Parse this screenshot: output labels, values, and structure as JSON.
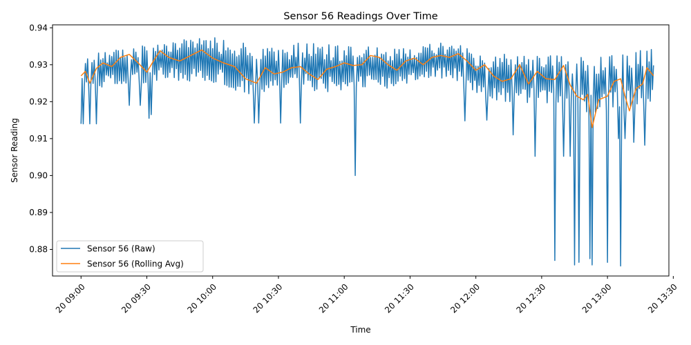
{
  "chart_data": {
    "type": "line",
    "title": "Sensor 56 Readings Over Time",
    "xlabel": "Time",
    "ylabel": "Sensor Reading",
    "xlim": [
      "2000-01-20 08:47",
      "2000-01-20 13:28"
    ],
    "ylim": [
      0.8728,
      0.9408
    ],
    "x_ticks": [
      "20 09:00",
      "20 09:30",
      "20 10:00",
      "20 10:30",
      "20 11:00",
      "20 11:30",
      "20 12:00",
      "20 12:30",
      "20 13:00",
      "20 13:30"
    ],
    "y_ticks": [
      "0.88",
      "0.89",
      "0.90",
      "0.91",
      "0.92",
      "0.93",
      "0.94"
    ],
    "y_tick_values": [
      0.88,
      0.89,
      0.9,
      0.91,
      0.92,
      0.93,
      0.94
    ],
    "grid": false,
    "legend_position": "lower-left",
    "x_start": "2000-01-20 09:00",
    "x_end": "2000-01-20 13:21",
    "sample_interval_minutes": 0.5,
    "series": [
      {
        "name": "Sensor 56 (Raw)",
        "color": "#1f77b4",
        "band": [
          {
            "time": "09:00",
            "low": 0.9238,
            "high": 0.9325
          },
          {
            "time": "09:10",
            "low": 0.9238,
            "high": 0.934
          },
          {
            "time": "09:20",
            "low": 0.924,
            "high": 0.934
          },
          {
            "time": "09:30",
            "low": 0.9245,
            "high": 0.9355
          },
          {
            "time": "09:40",
            "low": 0.9258,
            "high": 0.9375
          },
          {
            "time": "09:50",
            "low": 0.9255,
            "high": 0.937
          },
          {
            "time": "10:00",
            "low": 0.925,
            "high": 0.9375
          },
          {
            "time": "10:10",
            "low": 0.923,
            "high": 0.9365
          },
          {
            "time": "10:20",
            "low": 0.9215,
            "high": 0.935
          },
          {
            "time": "10:30",
            "low": 0.9225,
            "high": 0.9355
          },
          {
            "time": "10:40",
            "low": 0.923,
            "high": 0.9365
          },
          {
            "time": "10:50",
            "low": 0.9225,
            "high": 0.936
          },
          {
            "time": "11:00",
            "low": 0.923,
            "high": 0.935
          },
          {
            "time": "11:10",
            "low": 0.924,
            "high": 0.935
          },
          {
            "time": "11:20",
            "low": 0.923,
            "high": 0.935
          },
          {
            "time": "11:30",
            "low": 0.925,
            "high": 0.935
          },
          {
            "time": "11:40",
            "low": 0.9265,
            "high": 0.936
          },
          {
            "time": "11:50",
            "low": 0.926,
            "high": 0.936
          },
          {
            "time": "12:00",
            "low": 0.9215,
            "high": 0.9335
          },
          {
            "time": "12:10",
            "low": 0.92,
            "high": 0.933
          },
          {
            "time": "12:20",
            "low": 0.919,
            "high": 0.933
          },
          {
            "time": "12:30",
            "low": 0.9195,
            "high": 0.933
          },
          {
            "time": "12:40",
            "low": 0.9185,
            "high": 0.9325
          },
          {
            "time": "12:50",
            "low": 0.9165,
            "high": 0.9325
          },
          {
            "time": "13:00",
            "low": 0.9175,
            "high": 0.9325
          },
          {
            "time": "13:10",
            "low": 0.918,
            "high": 0.9335
          },
          {
            "time": "13:21",
            "low": 0.9185,
            "high": 0.935
          }
        ],
        "spikes": [
          {
            "time": "09:00",
            "value": 0.914
          },
          {
            "time": "09:01",
            "value": 0.914
          },
          {
            "time": "09:04",
            "value": 0.914
          },
          {
            "time": "09:07",
            "value": 0.914
          },
          {
            "time": "09:22",
            "value": 0.919
          },
          {
            "time": "09:27",
            "value": 0.919
          },
          {
            "time": "09:31",
            "value": 0.9155
          },
          {
            "time": "09:32",
            "value": 0.9165
          },
          {
            "time": "10:19",
            "value": 0.9142
          },
          {
            "time": "10:21",
            "value": 0.9142
          },
          {
            "time": "10:31",
            "value": 0.9142
          },
          {
            "time": "10:40",
            "value": 0.9142
          },
          {
            "time": "11:05",
            "value": 0.9
          },
          {
            "time": "11:55",
            "value": 0.9148
          },
          {
            "time": "12:05",
            "value": 0.915
          },
          {
            "time": "12:17",
            "value": 0.911
          },
          {
            "time": "12:27",
            "value": 0.9052
          },
          {
            "time": "12:36",
            "value": 0.877
          },
          {
            "time": "12:40",
            "value": 0.9052
          },
          {
            "time": "12:43",
            "value": 0.9052
          },
          {
            "time": "12:45",
            "value": 0.8758
          },
          {
            "time": "12:47",
            "value": 0.8765
          },
          {
            "time": "12:52",
            "value": 0.8775
          },
          {
            "time": "12:53",
            "value": 0.8758
          },
          {
            "time": "13:00",
            "value": 0.8765
          },
          {
            "time": "13:05",
            "value": 0.91
          },
          {
            "time": "13:06",
            "value": 0.8755
          },
          {
            "time": "13:08",
            "value": 0.91
          },
          {
            "time": "13:12",
            "value": 0.909
          },
          {
            "time": "13:17",
            "value": 0.9082
          }
        ]
      },
      {
        "name": "Sensor 56 (Rolling Avg)",
        "color": "#ff7f0e",
        "points": [
          {
            "time": "09:00",
            "value": 0.927
          },
          {
            "time": "09:02",
            "value": 0.9282
          },
          {
            "time": "09:04",
            "value": 0.925
          },
          {
            "time": "09:07",
            "value": 0.929
          },
          {
            "time": "09:10",
            "value": 0.9305
          },
          {
            "time": "09:14",
            "value": 0.9295
          },
          {
            "time": "09:18",
            "value": 0.932
          },
          {
            "time": "09:22",
            "value": 0.9328
          },
          {
            "time": "09:26",
            "value": 0.9305
          },
          {
            "time": "09:30",
            "value": 0.928
          },
          {
            "time": "09:33",
            "value": 0.931
          },
          {
            "time": "09:36",
            "value": 0.9338
          },
          {
            "time": "09:40",
            "value": 0.932
          },
          {
            "time": "09:45",
            "value": 0.931
          },
          {
            "time": "09:50",
            "value": 0.9325
          },
          {
            "time": "09:55",
            "value": 0.934
          },
          {
            "time": "10:00",
            "value": 0.9318
          },
          {
            "time": "10:05",
            "value": 0.9305
          },
          {
            "time": "10:10",
            "value": 0.9295
          },
          {
            "time": "10:15",
            "value": 0.9262
          },
          {
            "time": "10:20",
            "value": 0.925
          },
          {
            "time": "10:24",
            "value": 0.9292
          },
          {
            "time": "10:28",
            "value": 0.9275
          },
          {
            "time": "10:32",
            "value": 0.928
          },
          {
            "time": "10:36",
            "value": 0.9292
          },
          {
            "time": "10:40",
            "value": 0.9295
          },
          {
            "time": "10:44",
            "value": 0.9275
          },
          {
            "time": "10:48",
            "value": 0.926
          },
          {
            "time": "10:52",
            "value": 0.9288
          },
          {
            "time": "10:56",
            "value": 0.9295
          },
          {
            "time": "11:00",
            "value": 0.9305
          },
          {
            "time": "11:04",
            "value": 0.9298
          },
          {
            "time": "11:08",
            "value": 0.93
          },
          {
            "time": "11:12",
            "value": 0.9325
          },
          {
            "time": "11:16",
            "value": 0.932
          },
          {
            "time": "11:20",
            "value": 0.93
          },
          {
            "time": "11:24",
            "value": 0.9285
          },
          {
            "time": "11:28",
            "value": 0.931
          },
          {
            "time": "11:32",
            "value": 0.9318
          },
          {
            "time": "11:36",
            "value": 0.93
          },
          {
            "time": "11:40",
            "value": 0.932
          },
          {
            "time": "11:44",
            "value": 0.9325
          },
          {
            "time": "11:48",
            "value": 0.932
          },
          {
            "time": "11:52",
            "value": 0.933
          },
          {
            "time": "11:56",
            "value": 0.931
          },
          {
            "time": "12:00",
            "value": 0.9285
          },
          {
            "time": "12:04",
            "value": 0.93
          },
          {
            "time": "12:08",
            "value": 0.927
          },
          {
            "time": "12:12",
            "value": 0.9255
          },
          {
            "time": "12:16",
            "value": 0.9262
          },
          {
            "time": "12:20",
            "value": 0.93
          },
          {
            "time": "12:24",
            "value": 0.9248
          },
          {
            "time": "12:28",
            "value": 0.9282
          },
          {
            "time": "12:32",
            "value": 0.9262
          },
          {
            "time": "12:36",
            "value": 0.926
          },
          {
            "time": "12:40",
            "value": 0.9298
          },
          {
            "time": "12:43",
            "value": 0.9245
          },
          {
            "time": "12:46",
            "value": 0.9215
          },
          {
            "time": "12:49",
            "value": 0.9205
          },
          {
            "time": "12:51",
            "value": 0.922
          },
          {
            "time": "12:53",
            "value": 0.913
          },
          {
            "time": "12:56",
            "value": 0.9205
          },
          {
            "time": "13:00",
            "value": 0.9215
          },
          {
            "time": "13:03",
            "value": 0.9255
          },
          {
            "time": "13:06",
            "value": 0.9262
          },
          {
            "time": "13:08",
            "value": 0.9215
          },
          {
            "time": "13:10",
            "value": 0.9175
          },
          {
            "time": "13:13",
            "value": 0.9235
          },
          {
            "time": "13:16",
            "value": 0.9248
          },
          {
            "time": "13:18",
            "value": 0.9292
          },
          {
            "time": "13:21",
            "value": 0.927
          }
        ]
      }
    ]
  }
}
